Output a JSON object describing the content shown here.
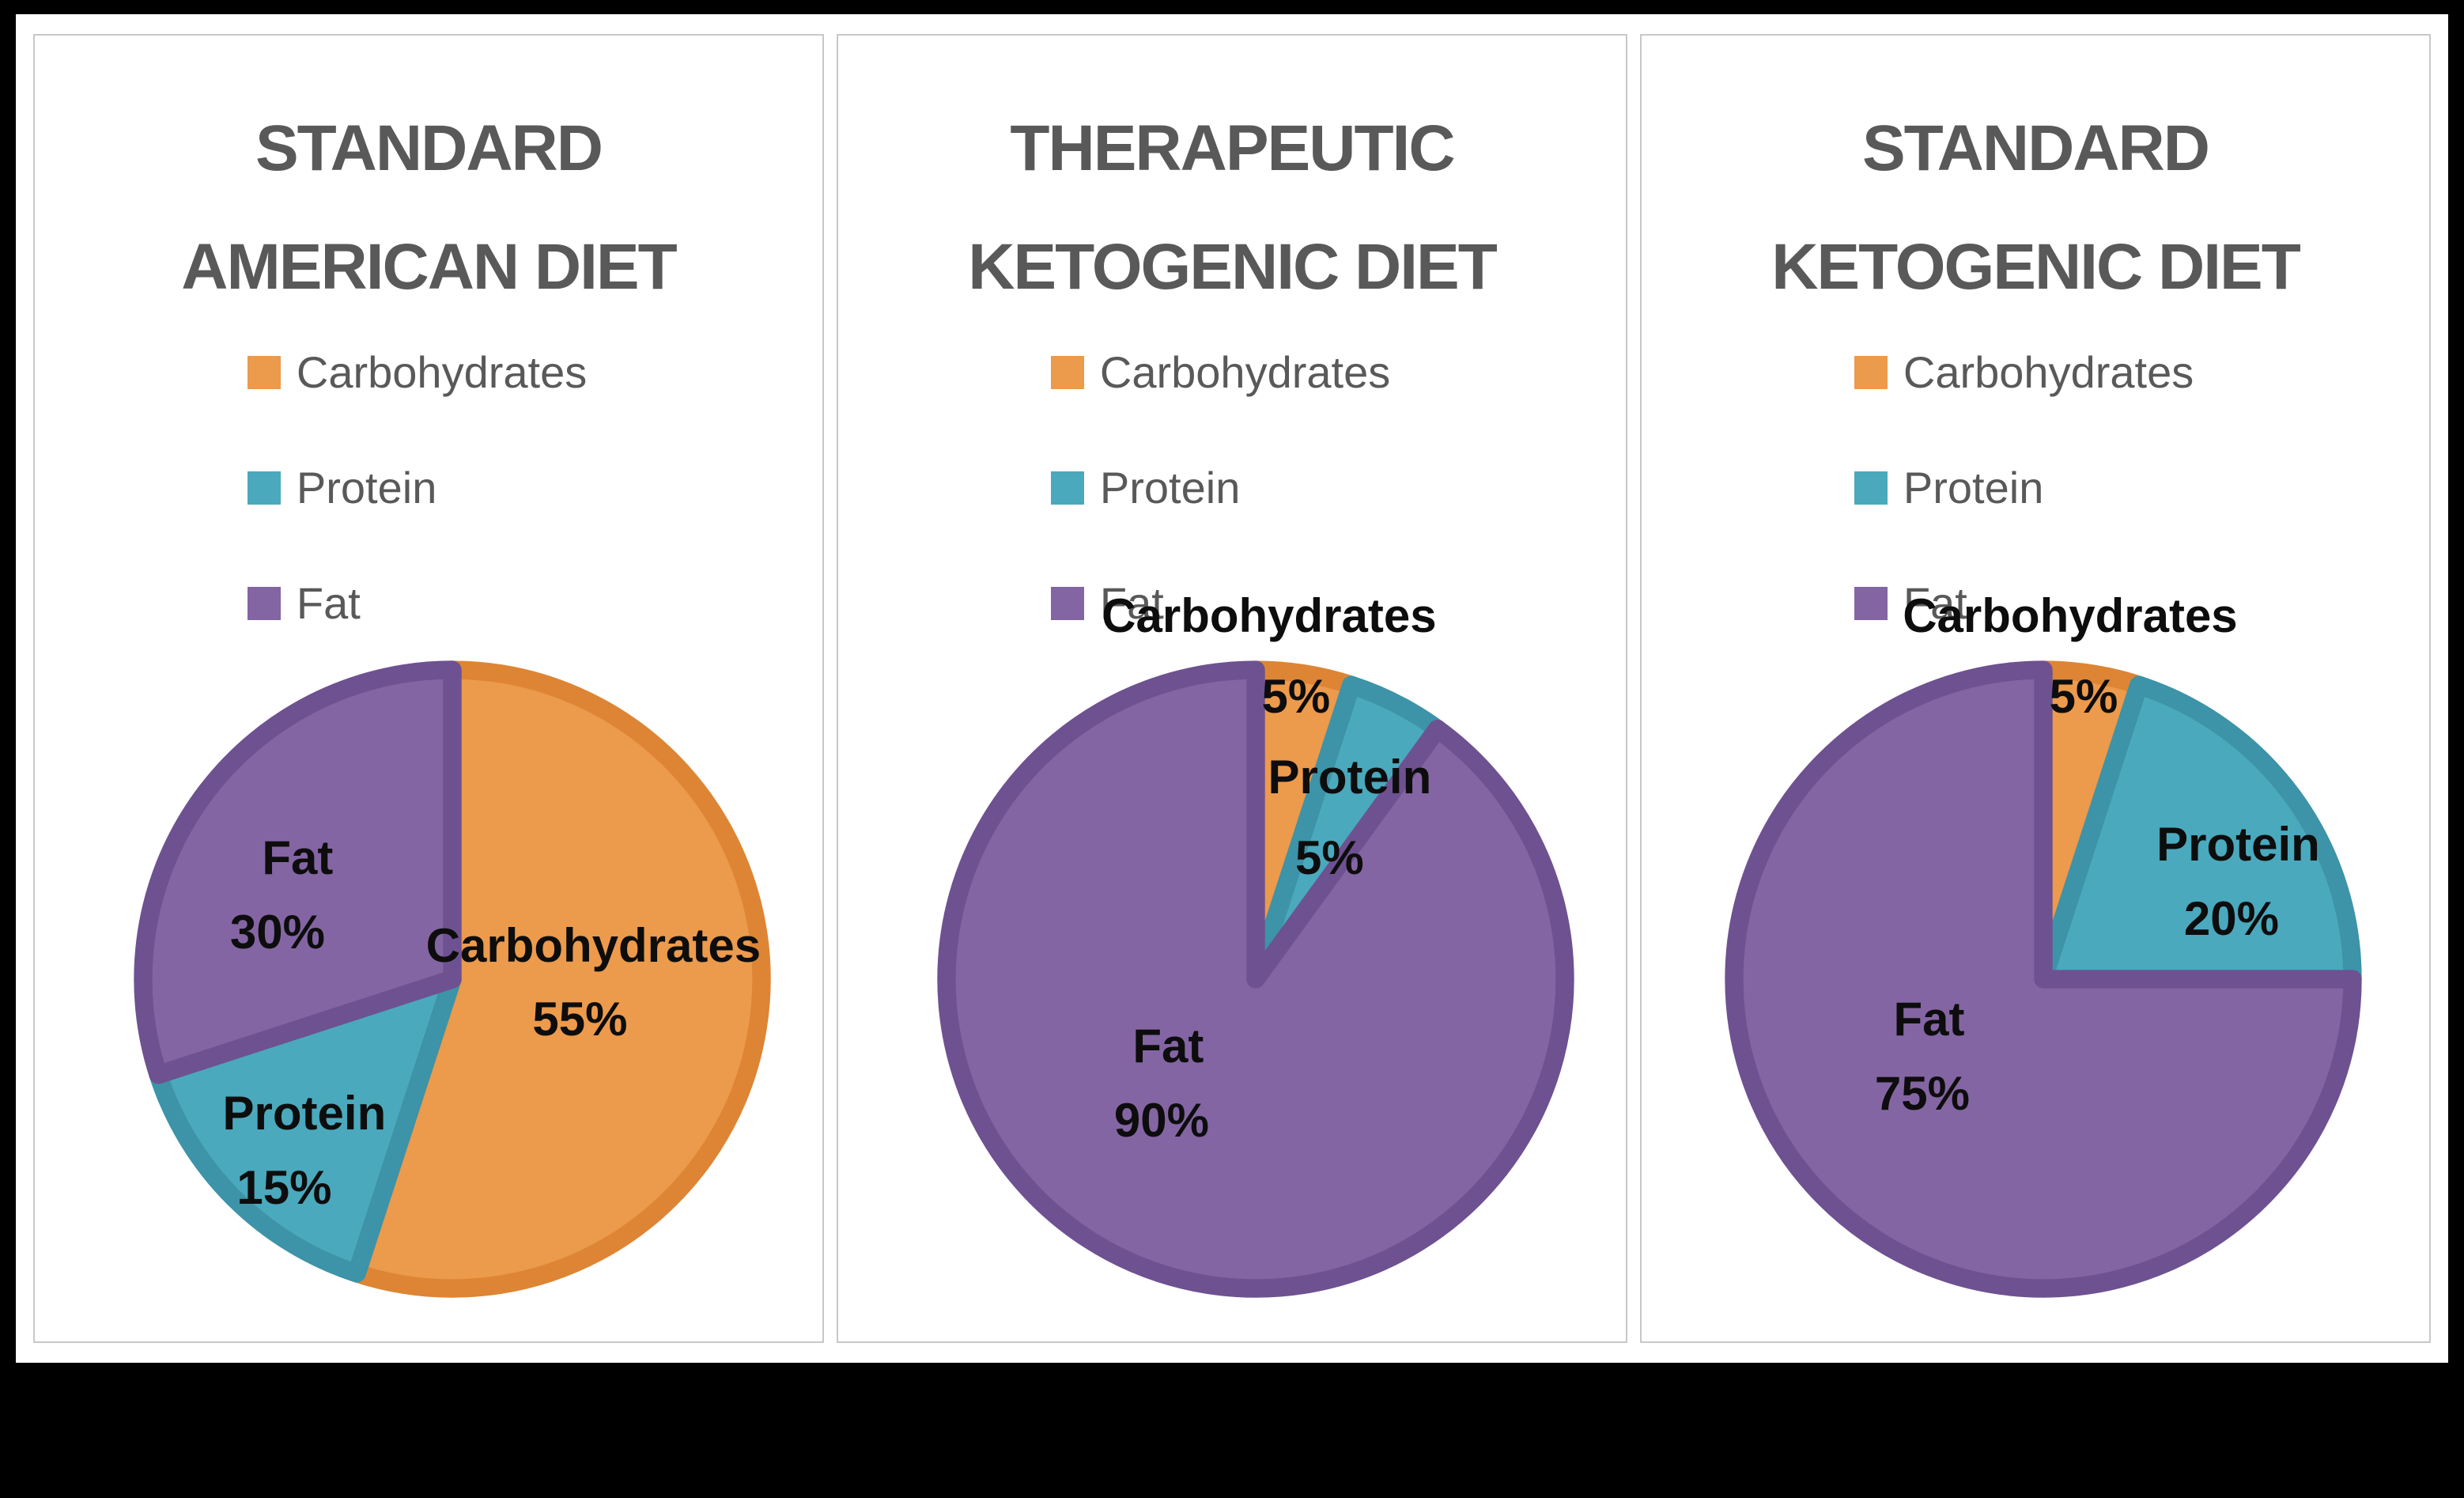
{
  "page": {
    "background": "#000000",
    "card_background": "#ffffff",
    "panel_border_color": "#c8c8c8",
    "title_color": "#595959",
    "legend_text_color": "#595959",
    "data_label_color": "#0d0d0d"
  },
  "chart_data": [
    {
      "type": "pie",
      "title": "STANDARD AMERICAN DIET",
      "title_lines": [
        "STANDARD",
        "AMERICAN DIET"
      ],
      "legend_position": "top-left",
      "start_angle_deg": 0,
      "direction": "clockwise",
      "slices": [
        {
          "label": "Carbohydrates",
          "value": 55,
          "pct_label": "55%",
          "fill": "#EC9A4C",
          "stroke": "#DD8534",
          "name_pos": {
            "x": 71,
            "y": 45
          },
          "value_pos": {
            "x": 69,
            "y": 56
          }
        },
        {
          "label": "Protein",
          "value": 15,
          "pct_label": "15%",
          "fill": "#4AA9BD",
          "stroke": "#3D93A8",
          "name_pos": {
            "x": 28,
            "y": 70
          },
          "value_pos": {
            "x": 25,
            "y": 81
          }
        },
        {
          "label": "Fat",
          "value": 30,
          "pct_label": "30%",
          "fill": "#8465A3",
          "stroke": "#6E5191",
          "name_pos": {
            "x": 27,
            "y": 32
          },
          "value_pos": {
            "x": 24,
            "y": 43
          }
        }
      ]
    },
    {
      "type": "pie",
      "title": "THERAPEUTIC KETOGENIC DIET",
      "title_lines": [
        "THERAPEUTIC",
        "KETOGENIC DIET"
      ],
      "legend_position": "top-left",
      "start_angle_deg": 0,
      "direction": "clockwise",
      "slices": [
        {
          "label": "Carbohydrates",
          "value": 5,
          "pct_label": "5%",
          "fill": "#EC9A4C",
          "stroke": "#DD8534",
          "name_pos": {
            "x": 52,
            "y": -4
          },
          "value_pos": {
            "x": 56,
            "y": 8
          }
        },
        {
          "label": "Protein",
          "value": 5,
          "pct_label": "5%",
          "fill": "#4AA9BD",
          "stroke": "#3D93A8",
          "name_pos": {
            "x": 64,
            "y": 20
          },
          "value_pos": {
            "x": 61,
            "y": 32
          }
        },
        {
          "label": "Fat",
          "value": 90,
          "pct_label": "90%",
          "fill": "#8465A3",
          "stroke": "#6E5191",
          "name_pos": {
            "x": 37,
            "y": 60
          },
          "value_pos": {
            "x": 36,
            "y": 71
          }
        }
      ]
    },
    {
      "type": "pie",
      "title": "STANDARD KETOGENIC DIET",
      "title_lines": [
        "STANDARD",
        "KETOGENIC DIET"
      ],
      "legend_position": "top-left",
      "start_angle_deg": 0,
      "direction": "clockwise",
      "slices": [
        {
          "label": "Carbohydrates",
          "value": 5,
          "pct_label": "5%",
          "fill": "#EC9A4C",
          "stroke": "#DD8534",
          "name_pos": {
            "x": 54,
            "y": -4
          },
          "value_pos": {
            "x": 56,
            "y": 8
          }
        },
        {
          "label": "Protein",
          "value": 20,
          "pct_label": "20%",
          "fill": "#4AA9BD",
          "stroke": "#3D93A8",
          "name_pos": {
            "x": 79,
            "y": 30
          },
          "value_pos": {
            "x": 78,
            "y": 41
          }
        },
        {
          "label": "Fat",
          "value": 75,
          "pct_label": "75%",
          "fill": "#8465A3",
          "stroke": "#6E5191",
          "name_pos": {
            "x": 33,
            "y": 56
          },
          "value_pos": {
            "x": 32,
            "y": 67
          }
        }
      ]
    }
  ]
}
